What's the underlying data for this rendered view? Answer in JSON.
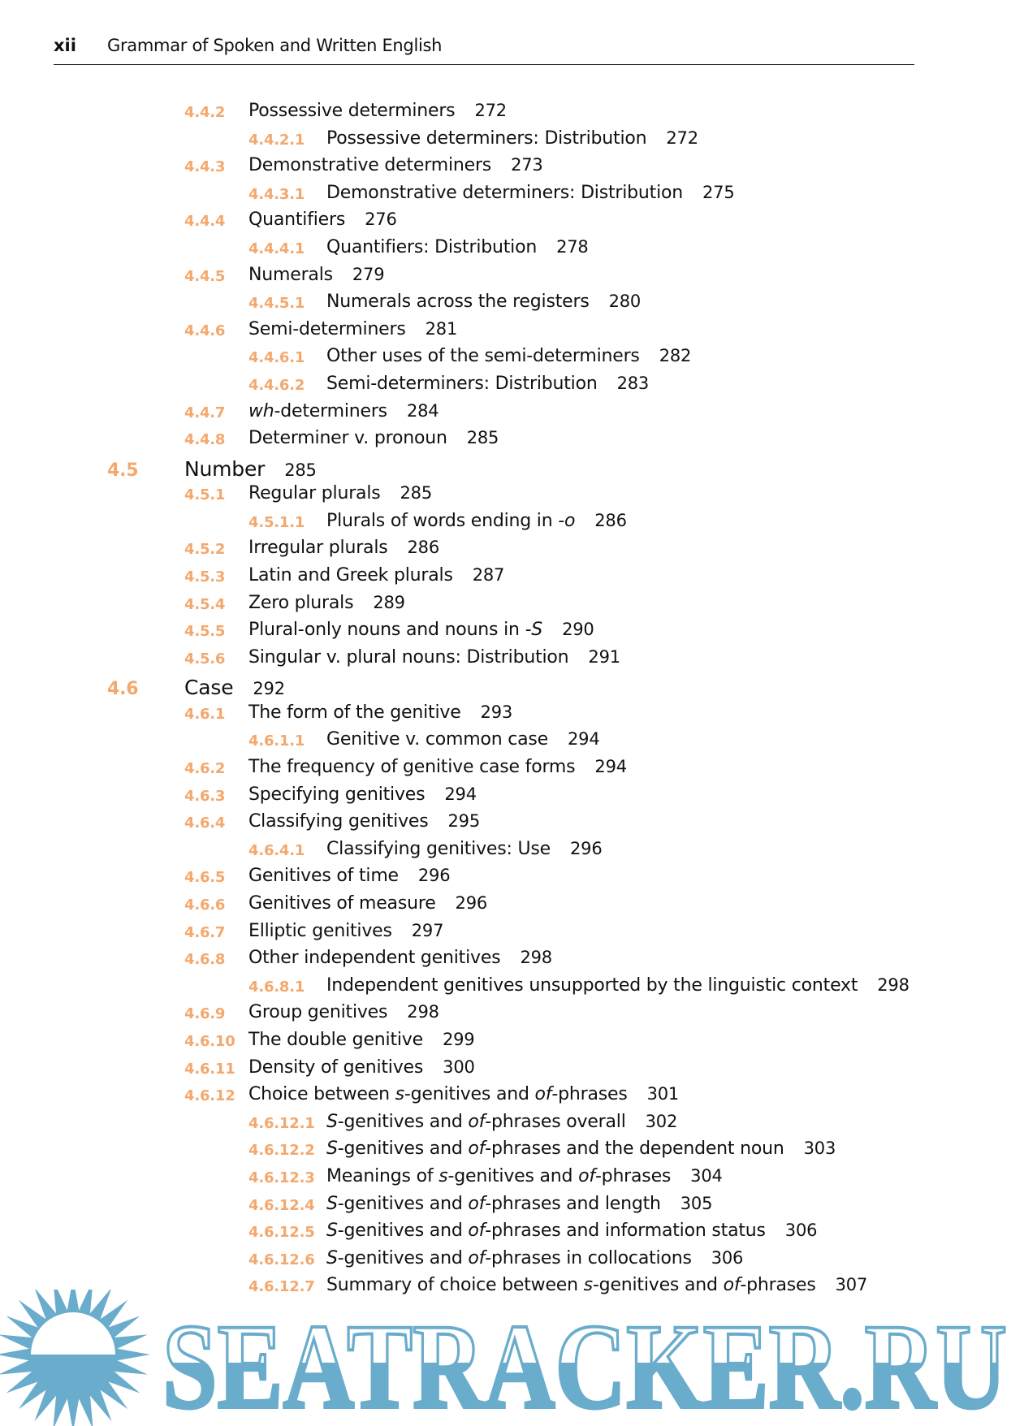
{
  "header": {
    "folio": "xii",
    "title": "Grammar of Spoken and Written English"
  },
  "colors": {
    "section_number": "#f29a55",
    "watermark": "#6aaccc"
  },
  "watermark": {
    "text": "SEATRACKER.RU",
    "icon": "sun-icon"
  },
  "entries": [
    {
      "level": 2,
      "num": "4.4.2",
      "text": [
        {
          "t": "Possessive determiners"
        }
      ],
      "page": "272"
    },
    {
      "level": 3,
      "num": "4.4.2.1",
      "text": [
        {
          "t": "Possessive determiners: Distribution"
        }
      ],
      "page": "272"
    },
    {
      "level": 2,
      "num": "4.4.3",
      "text": [
        {
          "t": "Demonstrative determiners"
        }
      ],
      "page": "273"
    },
    {
      "level": 3,
      "num": "4.4.3.1",
      "text": [
        {
          "t": "Demonstrative determiners: Distribution"
        }
      ],
      "page": "275"
    },
    {
      "level": 2,
      "num": "4.4.4",
      "text": [
        {
          "t": "Quantifiers"
        }
      ],
      "page": "276"
    },
    {
      "level": 3,
      "num": "4.4.4.1",
      "text": [
        {
          "t": "Quantifiers: Distribution"
        }
      ],
      "page": "278"
    },
    {
      "level": 2,
      "num": "4.4.5",
      "text": [
        {
          "t": "Numerals"
        }
      ],
      "page": "279"
    },
    {
      "level": 3,
      "num": "4.4.5.1",
      "text": [
        {
          "t": "Numerals across the registers"
        }
      ],
      "page": "280"
    },
    {
      "level": 2,
      "num": "4.4.6",
      "text": [
        {
          "t": "Semi-determiners"
        }
      ],
      "page": "281"
    },
    {
      "level": 3,
      "num": "4.4.6.1",
      "text": [
        {
          "t": "Other uses of the semi-determiners"
        }
      ],
      "page": "282"
    },
    {
      "level": 3,
      "num": "4.4.6.2",
      "text": [
        {
          "t": "Semi-determiners: Distribution"
        }
      ],
      "page": "283"
    },
    {
      "level": 2,
      "num": "4.4.7",
      "text": [
        {
          "t": "wh",
          "i": true
        },
        {
          "t": "-determiners"
        }
      ],
      "page": "284"
    },
    {
      "level": 2,
      "num": "4.4.8",
      "text": [
        {
          "t": "Determiner v. pronoun"
        }
      ],
      "page": "285"
    },
    {
      "level": 1,
      "num": "4.5",
      "text": [
        {
          "t": "Number"
        }
      ],
      "page": "285"
    },
    {
      "level": 2,
      "num": "4.5.1",
      "text": [
        {
          "t": "Regular plurals"
        }
      ],
      "page": "285"
    },
    {
      "level": 3,
      "num": "4.5.1.1",
      "text": [
        {
          "t": "Plurals of words ending in "
        },
        {
          "t": "-o",
          "i": true
        }
      ],
      "page": "286"
    },
    {
      "level": 2,
      "num": "4.5.2",
      "text": [
        {
          "t": "Irregular plurals"
        }
      ],
      "page": "286"
    },
    {
      "level": 2,
      "num": "4.5.3",
      "text": [
        {
          "t": "Latin and Greek plurals"
        }
      ],
      "page": "287"
    },
    {
      "level": 2,
      "num": "4.5.4",
      "text": [
        {
          "t": "Zero plurals"
        }
      ],
      "page": "289"
    },
    {
      "level": 2,
      "num": "4.5.5",
      "text": [
        {
          "t": "Plural-only nouns and nouns in "
        },
        {
          "t": "-S",
          "i": true
        }
      ],
      "page": "290"
    },
    {
      "level": 2,
      "num": "4.5.6",
      "text": [
        {
          "t": "Singular v. plural nouns: Distribution"
        }
      ],
      "page": "291"
    },
    {
      "level": 1,
      "num": "4.6",
      "text": [
        {
          "t": "Case"
        }
      ],
      "page": "292"
    },
    {
      "level": 2,
      "num": "4.6.1",
      "text": [
        {
          "t": "The form of the genitive"
        }
      ],
      "page": "293"
    },
    {
      "level": 3,
      "num": "4.6.1.1",
      "text": [
        {
          "t": "Genitive v. common case"
        }
      ],
      "page": "294"
    },
    {
      "level": 2,
      "num": "4.6.2",
      "text": [
        {
          "t": "The frequency of genitive case forms"
        }
      ],
      "page": "294"
    },
    {
      "level": 2,
      "num": "4.6.3",
      "text": [
        {
          "t": "Specifying genitives"
        }
      ],
      "page": "294"
    },
    {
      "level": 2,
      "num": "4.6.4",
      "text": [
        {
          "t": "Classifying genitives"
        }
      ],
      "page": "295"
    },
    {
      "level": 3,
      "num": "4.6.4.1",
      "text": [
        {
          "t": "Classifying genitives: Use"
        }
      ],
      "page": "296"
    },
    {
      "level": 2,
      "num": "4.6.5",
      "text": [
        {
          "t": "Genitives of time"
        }
      ],
      "page": "296"
    },
    {
      "level": 2,
      "num": "4.6.6",
      "text": [
        {
          "t": "Genitives of measure"
        }
      ],
      "page": "296"
    },
    {
      "level": 2,
      "num": "4.6.7",
      "text": [
        {
          "t": "Elliptic genitives"
        }
      ],
      "page": "297"
    },
    {
      "level": 2,
      "num": "4.6.8",
      "text": [
        {
          "t": "Other independent genitives"
        }
      ],
      "page": "298"
    },
    {
      "level": 3,
      "num": "4.6.8.1",
      "text": [
        {
          "t": "Independent genitives unsupported by the linguistic context"
        }
      ],
      "page": "298"
    },
    {
      "level": 2,
      "num": "4.6.9",
      "text": [
        {
          "t": "Group genitives"
        }
      ],
      "page": "298"
    },
    {
      "level": 2,
      "num": "4.6.10",
      "text": [
        {
          "t": "The double genitive"
        }
      ],
      "page": "299"
    },
    {
      "level": 2,
      "num": "4.6.11",
      "text": [
        {
          "t": "Density of genitives"
        }
      ],
      "page": "300"
    },
    {
      "level": 2,
      "num": "4.6.12",
      "text": [
        {
          "t": "Choice between "
        },
        {
          "t": "s",
          "i": true
        },
        {
          "t": "-genitives and "
        },
        {
          "t": "of",
          "i": true
        },
        {
          "t": "-phrases"
        }
      ],
      "page": "301"
    },
    {
      "level": 3,
      "num": "4.6.12.1",
      "text": [
        {
          "t": "S",
          "i": true
        },
        {
          "t": "-genitives and "
        },
        {
          "t": "of",
          "i": true
        },
        {
          "t": "-phrases overall"
        }
      ],
      "page": "302"
    },
    {
      "level": 3,
      "num": "4.6.12.2",
      "text": [
        {
          "t": "S",
          "i": true
        },
        {
          "t": "-genitives and "
        },
        {
          "t": "of",
          "i": true
        },
        {
          "t": "-phrases and the dependent noun"
        }
      ],
      "page": "303"
    },
    {
      "level": 3,
      "num": "4.6.12.3",
      "text": [
        {
          "t": "Meanings of "
        },
        {
          "t": "s",
          "i": true
        },
        {
          "t": "-genitives and "
        },
        {
          "t": "of",
          "i": true
        },
        {
          "t": "-phrases"
        }
      ],
      "page": "304"
    },
    {
      "level": 3,
      "num": "4.6.12.4",
      "text": [
        {
          "t": "S",
          "i": true
        },
        {
          "t": "-genitives and "
        },
        {
          "t": "of",
          "i": true
        },
        {
          "t": "-phrases and length"
        }
      ],
      "page": "305"
    },
    {
      "level": 3,
      "num": "4.6.12.5",
      "text": [
        {
          "t": "S",
          "i": true
        },
        {
          "t": "-genitives and "
        },
        {
          "t": "of",
          "i": true
        },
        {
          "t": "-phrases and information status"
        }
      ],
      "page": "306"
    },
    {
      "level": 3,
      "num": "4.6.12.6",
      "text": [
        {
          "t": "S",
          "i": true
        },
        {
          "t": "-genitives and "
        },
        {
          "t": "of",
          "i": true
        },
        {
          "t": "-phrases in collocations"
        }
      ],
      "page": "306"
    },
    {
      "level": 3,
      "num": "4.6.12.7",
      "text": [
        {
          "t": "Summary of choice between "
        },
        {
          "t": "s",
          "i": true
        },
        {
          "t": "-genitives and "
        },
        {
          "t": "of",
          "i": true
        },
        {
          "t": "-phrases"
        }
      ],
      "page": "307"
    }
  ]
}
